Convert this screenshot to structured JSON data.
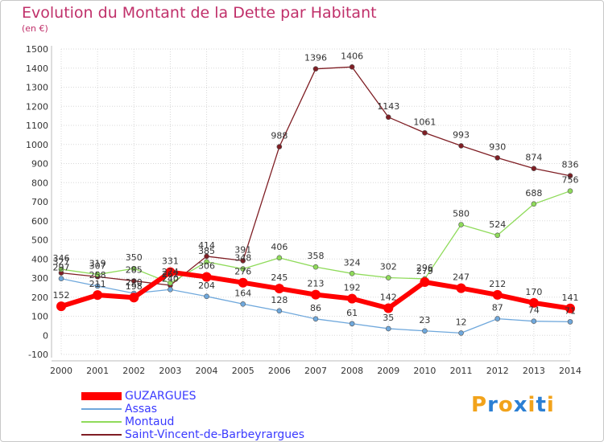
{
  "chart_data": {
    "type": "line",
    "title": "Evolution du Montant de la Dette par Habitant",
    "subtitle": "(en €)",
    "xlabel": "",
    "ylabel": "",
    "categories": [
      "2000",
      "2001",
      "2002",
      "2003",
      "2004",
      "2005",
      "2006",
      "2007",
      "2008",
      "2009",
      "2010",
      "2011",
      "2012",
      "2013",
      "2014"
    ],
    "ylim": [
      -100,
      1500
    ],
    "yticks": [
      -100,
      0,
      100,
      200,
      300,
      400,
      500,
      600,
      700,
      800,
      900,
      1000,
      1100,
      1200,
      1300,
      1400,
      1500
    ],
    "grid": true,
    "legend_position": "bottom-left",
    "series": [
      {
        "name": "GUZARGUES",
        "color": "#ff0000",
        "values": [
          152,
          211,
          198,
          331,
          306,
          276,
          245,
          213,
          192,
          142,
          279,
          247,
          212,
          170,
          141
        ]
      },
      {
        "name": "Assas",
        "color": "#6fa8dc",
        "values": [
          297,
          258,
          220,
          240,
          204,
          164,
          128,
          86,
          61,
          35,
          23,
          12,
          87,
          74,
          71
        ]
      },
      {
        "name": "Montaud",
        "color": "#8fdb5a",
        "values": [
          346,
          319,
          350,
          274,
          385,
          348,
          406,
          358,
          324,
          302,
          296,
          580,
          524,
          688,
          756
        ]
      },
      {
        "name": "Saint-Vincent-de-Barbeyrargues",
        "color": "#7f1e24",
        "values": [
          327,
          307,
          285,
          262,
          414,
          391,
          988,
          1396,
          1406,
          1143,
          1061,
          993,
          930,
          874,
          836
        ]
      }
    ]
  },
  "branding": {
    "logo_text": "Proxiti",
    "logo_colors": [
      "#f2a31b",
      "#2b7fd4",
      "#f2a31b",
      "#2b7fd4",
      "#f2a31b",
      "#2b7fd4",
      "#f2a31b"
    ]
  }
}
